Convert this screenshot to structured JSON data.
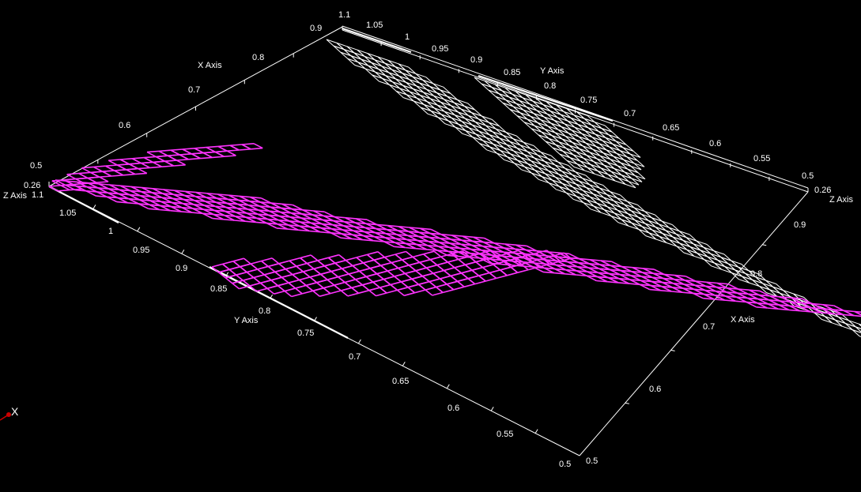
{
  "axes": {
    "x_title": "X Axis",
    "y_title": "Y Axis",
    "z_title": "Z Axis",
    "top_x_ticks": [
      "0.5",
      "0.6",
      "0.7",
      "0.8",
      "0.9"
    ],
    "top_y_ticks": [
      "1.05",
      "1",
      "0.95",
      "0.9",
      "0.85",
      "0.8",
      "0.75",
      "0.7",
      "0.65",
      "0.6",
      "0.55",
      "0.5"
    ],
    "top_corner_left": "1.1",
    "top_corner_right": "0.26",
    "left_z": "0.26",
    "left_corner": "1.1",
    "bottom_y_ticks": [
      "1.05",
      "1",
      "0.95",
      "0.9",
      "0.85",
      "0.8",
      "0.75",
      "0.7",
      "0.65",
      "0.6",
      "0.55",
      "0.5"
    ],
    "right_x_ticks": [
      "0.9",
      "0.8",
      "0.7",
      "0.6",
      "0.5"
    ]
  },
  "orientation_triad": {
    "x_label": "X",
    "x_color": "#cc0000"
  },
  "colors": {
    "background": "#000000",
    "axes": "#ffffff",
    "surface_projection": "#ffffff",
    "surface": "#ff33ff"
  }
}
